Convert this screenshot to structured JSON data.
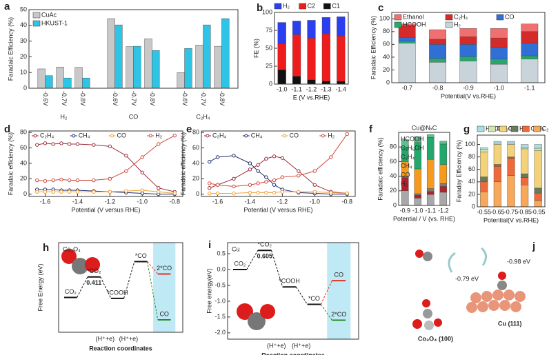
{
  "chart_data": [
    {
      "panel": "a",
      "type": "grouped_bar",
      "ylabel": "Faradaic Efficiency (%)",
      "legend": "upper-left",
      "groups": [
        "H₂",
        "CO",
        "C₂H₄"
      ],
      "categories": [
        "-0.6V",
        "-0.7V",
        "-0.8V",
        "-0.6V",
        "-0.7V",
        "-0.8V",
        "-0.6V",
        "-0.7V",
        "-0.8V"
      ],
      "series": [
        {
          "name": "CuAc",
          "color": "#c8c8c8",
          "values": [
            12.3,
            13.5,
            13.3,
            44.3,
            26.5,
            31.5,
            10,
            27.5,
            26.7
          ]
        },
        {
          "name": "HKUST-1",
          "color": "#2ec4e6",
          "values": [
            8,
            6.5,
            6.5,
            40.3,
            26.7,
            24,
            25.3,
            40.3,
            44.3
          ]
        }
      ],
      "ylim": [
        0,
        50
      ],
      "yticks": [
        0,
        10,
        20,
        30,
        40,
        50
      ]
    },
    {
      "panel": "b",
      "type": "stacked_bar",
      "xlabel": "E (V vs.RHE)",
      "ylabel": "FE (%)",
      "legend": "top",
      "categories": [
        "-1.0",
        "-1.1",
        "-1.2",
        "-1.3",
        "-1.4"
      ],
      "series": [
        {
          "name": "H₂",
          "color": "#2b3ff0",
          "values": [
            30,
            19,
            25,
            23,
            27
          ]
        },
        {
          "name": "C2",
          "color": "#ee1c1c",
          "values": [
            36,
            58,
            58,
            66,
            63
          ]
        },
        {
          "name": "C1",
          "color": "#111111",
          "values": [
            20,
            11,
            6,
            4,
            4
          ]
        }
      ],
      "ylim": [
        0,
        100
      ],
      "yticks": [
        0,
        25,
        50,
        75,
        100
      ]
    },
    {
      "panel": "c",
      "type": "stacked_bar",
      "xlabel": "Potential(V vs.RHE)",
      "ylabel": "Faradaic Efficiency (%)",
      "legend": "top-inside",
      "categories": [
        "-0.7",
        "-0.8",
        "-0.9",
        "-1.0",
        "-1.1"
      ],
      "series": [
        {
          "name": "Ethanol",
          "color": "#f07070",
          "values": [
            3,
            15,
            13,
            15,
            12
          ]
        },
        {
          "name": "C₂H₄",
          "color": "#d42a2a",
          "values": [
            18,
            8,
            12,
            15,
            18
          ]
        },
        {
          "name": "CO",
          "color": "#2f6fd6",
          "values": [
            6,
            22,
            19,
            18,
            20
          ]
        },
        {
          "name": "HCOOH",
          "color": "#27a86a",
          "values": [
            3,
            6,
            7,
            8,
            5
          ]
        },
        {
          "name": "H₂",
          "color": "#c9d3da",
          "values": [
            62,
            32,
            34,
            29,
            37
          ]
        }
      ],
      "ylim": [
        0,
        110
      ],
      "yticks": [
        0,
        20,
        40,
        60,
        80,
        100
      ]
    },
    {
      "panel": "d",
      "type": "line",
      "xlabel": "Potential (V versus RHE)",
      "ylabel": "Faradaic efficiency (%)",
      "legend": "top-inside",
      "x": [
        -1.65,
        -1.6,
        -1.55,
        -1.5,
        -1.45,
        -1.4,
        -1.3,
        -1.2,
        -1.1,
        -1.0,
        -0.9,
        -0.8
      ],
      "series": [
        {
          "name": "C₂H₄",
          "color": "#9b2b3a",
          "values": [
            64,
            66,
            65,
            66,
            65,
            65,
            64,
            62,
            50,
            28,
            8,
            3
          ]
        },
        {
          "name": "CH₄",
          "color": "#1f2a6e",
          "values": [
            6,
            6,
            6,
            5,
            5,
            5,
            4,
            3,
            2,
            1,
            0,
            0
          ]
        },
        {
          "name": "CO",
          "color": "#f0a030",
          "values": [
            3,
            3,
            3,
            3,
            3,
            3,
            3,
            3,
            4,
            5,
            3,
            1
          ]
        },
        {
          "name": "H₂",
          "color": "#d0453a",
          "values": [
            18,
            17,
            18,
            19,
            18,
            18,
            18,
            20,
            30,
            48,
            65,
            76
          ]
        }
      ],
      "xlim": [
        -1.7,
        -0.75
      ],
      "xticks": [
        -1.6,
        -1.4,
        -1.2,
        {
          "value": -1.0,
          "label": "-1.0"
        },
        -0.8
      ],
      "ylim": [
        -3,
        82
      ],
      "yticks": [
        0,
        20,
        40,
        60,
        80
      ]
    },
    {
      "panel": "e",
      "type": "line",
      "xlabel": "Potential (V versus RHE)",
      "ylabel": "Faradaic efficiency (%)",
      "legend": "top-inside",
      "x": [
        -1.65,
        -1.6,
        -1.5,
        -1.4,
        -1.35,
        -1.3,
        -1.25,
        -1.2,
        -1.1,
        -1.0,
        -0.9,
        -0.8
      ],
      "series": [
        {
          "name": "C₂H₄",
          "color": "#9b2b3a",
          "values": [
            8,
            12,
            20,
            32,
            38,
            46,
            49,
            47,
            30,
            12,
            3,
            1
          ]
        },
        {
          "name": "CH₄",
          "color": "#1f2a6e",
          "values": [
            42,
            48,
            50,
            40,
            30,
            22,
            12,
            6,
            2,
            1,
            0,
            0
          ]
        },
        {
          "name": "CO",
          "color": "#f0a030",
          "values": [
            1,
            1,
            1,
            2,
            2,
            2,
            2,
            3,
            3,
            3,
            2,
            1
          ]
        },
        {
          "name": "H₂",
          "color": "#d0453a",
          "values": [
            14,
            12,
            10,
            12,
            14,
            16,
            18,
            22,
            24,
            30,
            48,
            78
          ]
        }
      ],
      "xlim": [
        -1.7,
        -0.75
      ],
      "xticks": [
        -1.6,
        -1.4,
        -1.2,
        {
          "value": -1.0,
          "label": "-1.0"
        },
        -0.8
      ],
      "ylim": [
        -3,
        82
      ],
      "yticks": [
        0,
        20,
        40,
        60,
        80
      ]
    },
    {
      "panel": "f",
      "type": "stacked_bar",
      "title": "Cu@NₓC",
      "xlabel": "Potential / V (vs. RHE)",
      "ylabel": "Faradaic efficiency (%)",
      "legend": "left-text",
      "categories": [
        "-0.9",
        "-1.0",
        "-1.1",
        "-1.2"
      ],
      "series": [
        {
          "name": "HCOOH",
          "color": "#5cc08a",
          "values": [
            10,
            8,
            4,
            4
          ]
        },
        {
          "name": "C₂H₅OH",
          "color": "#22a86a",
          "values": [
            20,
            36,
            30,
            28
          ]
        },
        {
          "name": "C₂H₄",
          "color": "#f59a1f",
          "values": [
            20,
            34,
            40,
            26
          ]
        },
        {
          "name": "CH₄",
          "color": "#7a7a7a",
          "values": [
            2,
            2,
            4,
            4
          ]
        },
        {
          "name": "CO",
          "color": "#b3202a",
          "values": [
            18,
            4,
            4,
            8
          ]
        },
        {
          "name": "H₂",
          "color": "#a8a8a8",
          "values": [
            20,
            10,
            15,
            18
          ]
        }
      ],
      "ylim": [
        0,
        100
      ],
      "yticks": [
        0,
        20,
        40,
        60,
        80
      ]
    },
    {
      "panel": "g",
      "type": "stacked_bar",
      "xlabel": "Potential(V vs.RHE)",
      "ylabel": "Faraday Efficiency (%)",
      "legend": "top",
      "categories": [
        "-0.55",
        "-0.65",
        "-0.75",
        "-0.85",
        "-0.95"
      ],
      "series": [
        {
          "name": "HCOO",
          "color": "#a8e0e8",
          "values": [
            3,
            3,
            3,
            4,
            6
          ]
        },
        {
          "name": "CH₃OH",
          "color": "#cfe8b0",
          "values": [
            4,
            2,
            2,
            3,
            4
          ]
        },
        {
          "name": "CO",
          "color": "#f3d27a",
          "values": [
            40,
            32,
            20,
            40,
            60
          ]
        },
        {
          "name": "H₂",
          "color": "#6a7a5a",
          "values": [
            8,
            3,
            2,
            6,
            8
          ]
        },
        {
          "name": "C₂H₄",
          "color": "#ef6a3a",
          "values": [
            16,
            25,
            28,
            12,
            12
          ]
        },
        {
          "name": "C₂H₅OH",
          "color": "#f7a85a",
          "values": [
            24,
            40,
            50,
            35,
            10
          ]
        }
      ],
      "ylim": [
        0,
        115
      ],
      "yticks": [
        0,
        20,
        40,
        60,
        80,
        100
      ]
    },
    {
      "panel": "h",
      "type": "energy",
      "title": "Co₃O₄",
      "xlabel": "Reaction coordinates",
      "ylabel": "Free Energy (eV)",
      "levels": [
        "CO₂",
        "*CO₂",
        "*COOH",
        "*CO",
        "2*CO",
        "CO"
      ],
      "values": [
        0,
        0.411,
        -0.02,
        0.72,
        0.47,
        -0.45
      ],
      "colors": [
        "#111111",
        "#111111",
        "#111111",
        "#111111",
        "#e03020",
        "#2a8a2a"
      ],
      "annotation": "0.411",
      "annotation_color": "#2a8a2a",
      "steps": [
        "(H⁺+e)",
        "(H⁺+e)"
      ],
      "ylim": [
        -0.7,
        1.1
      ]
    },
    {
      "panel": "i",
      "type": "energy",
      "title": "Cu",
      "xlabel": "Reaction coordinates",
      "ylabel": "Free energy(eV)",
      "levels": [
        "CO₂",
        "*CO₂",
        "*COOH",
        "*CO",
        "CO",
        "2*CO"
      ],
      "values": [
        0,
        0.605,
        -0.55,
        -1.1,
        -0.35,
        -1.6
      ],
      "colors": [
        "#111111",
        "#111111",
        "#111111",
        "#111111",
        "#e03020",
        "#2a8a2a"
      ],
      "annotation": "0.605",
      "annotation_color": "#111111",
      "steps": [
        "(H⁺+e)",
        "(H⁺+e)"
      ],
      "ylim": [
        -2.2,
        0.85
      ],
      "yticks": [
        0.5,
        {
          "value": 0,
          "label": "0.0"
        },
        -0.5,
        {
          "value": -1.0,
          "label": "-1.0"
        },
        -1.5,
        {
          "value": -2.0,
          "label": "-2.0"
        }
      ]
    }
  ],
  "diagram": {
    "panel": "j",
    "labels": [
      "-0.79 eV",
      "-0.98 eV",
      "Co₃O₄ (100)",
      "Cu (111)"
    ]
  }
}
